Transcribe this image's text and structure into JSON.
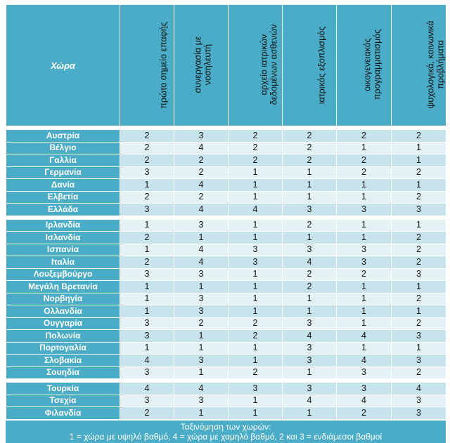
{
  "table": {
    "country_header": "Χώρα",
    "criteria": [
      [
        "πρώτο σημείο επαφής"
      ],
      [
        "συνεργασία με",
        "νοσηλευτή"
      ],
      [
        "αρχείο ιατρικών",
        "δεδομένων ασθενών"
      ],
      [
        "ιατρικός εξοπλισμός"
      ],
      [
        "οικογενειακός",
        "προγραμματισμός"
      ],
      [
        "ψυχολογικά, κοινωνικά",
        "προβλήματα"
      ]
    ],
    "rows": [
      {
        "country": "Αυστρία",
        "values": [
          "2",
          "3",
          "2",
          "2",
          "2",
          "2"
        ]
      },
      {
        "country": "Βέλγιο",
        "values": [
          "2",
          "4",
          "2",
          "2",
          "1",
          "1"
        ]
      },
      {
        "country": "Γαλλία",
        "values": [
          "2",
          "2",
          "2",
          "2",
          "2",
          "1"
        ]
      },
      {
        "country": "Γερμανία",
        "values": [
          "3",
          "2",
          "1",
          "1",
          "2",
          "2"
        ]
      },
      {
        "country": "Δανία",
        "values": [
          "1",
          "4",
          "1",
          "1",
          "1",
          "1"
        ]
      },
      {
        "country": "Ελβετία",
        "values": [
          "2",
          "2",
          "1",
          "1",
          "1",
          "2"
        ]
      },
      {
        "country": "Ελλάδα",
        "values": [
          "3",
          "4",
          "4",
          "3",
          "3",
          "3"
        ]
      },
      {
        "country": "Ιρλανδία",
        "values": [
          "1",
          "3",
          "1",
          "2",
          "1",
          "1"
        ]
      },
      {
        "country": "Ισλανδία",
        "values": [
          "2",
          "1",
          "1",
          "1",
          "1",
          "2"
        ]
      },
      {
        "country": "Ισπανία",
        "values": [
          "1",
          "4",
          "3",
          "3",
          "3",
          "2"
        ]
      },
      {
        "country": "Ιταλία",
        "values": [
          "2",
          "4",
          "3",
          "4",
          "3",
          "2"
        ]
      },
      {
        "country": "Λουξεμβούργο",
        "values": [
          "3",
          "3",
          "1",
          "2",
          "2",
          "3"
        ]
      },
      {
        "country": "Μεγάλη Βρετανία",
        "values": [
          "1",
          "1",
          "1",
          "2",
          "1",
          "1"
        ]
      },
      {
        "country": "Νορβηγία",
        "values": [
          "1",
          "3",
          "1",
          "1",
          "1",
          "2"
        ]
      },
      {
        "country": "Ολλανδία",
        "values": [
          "1",
          "3",
          "1",
          "1",
          "1",
          "1"
        ]
      },
      {
        "country": "Ουγγαρία",
        "values": [
          "3",
          "2",
          "2",
          "3",
          "1",
          "2"
        ]
      },
      {
        "country": "Πολωνία",
        "values": [
          "3",
          "1",
          "2",
          "4",
          "4",
          "3"
        ]
      },
      {
        "country": "Πορτογαλία",
        "values": [
          "1",
          "1",
          "1",
          "3",
          "1",
          "1"
        ]
      },
      {
        "country": "Σλοβακία",
        "values": [
          "4",
          "3",
          "1",
          "3",
          "4",
          "3"
        ]
      },
      {
        "country": "Σουηδία",
        "values": [
          "3",
          "1",
          "2",
          "1",
          "3",
          "2"
        ]
      },
      {
        "country": "Τουρκία",
        "values": [
          "4",
          "4",
          "3",
          "3",
          "3",
          "4"
        ]
      },
      {
        "country": "Τσεχία",
        "values": [
          "3",
          "3",
          "1",
          "4",
          "4",
          "3"
        ]
      },
      {
        "country": "Φιλανδία",
        "values": [
          "2",
          "1",
          "1",
          "1",
          "2",
          "3"
        ]
      }
    ],
    "gap_after_rows": [
      6,
      19
    ],
    "legend_line1": "Ταξινόμηση των χωρών:",
    "legend_line2": "1 = χώρα με υψηλό βαθμό, 4 = χώρα με χαμηλό βαθμό, 2 και 3 = ενδιάμεσοι βαθμοί"
  },
  "colors": {
    "header_blue": "#4aacc6",
    "row_dark": "#c7e4ec",
    "row_light": "#e4f1f5"
  }
}
